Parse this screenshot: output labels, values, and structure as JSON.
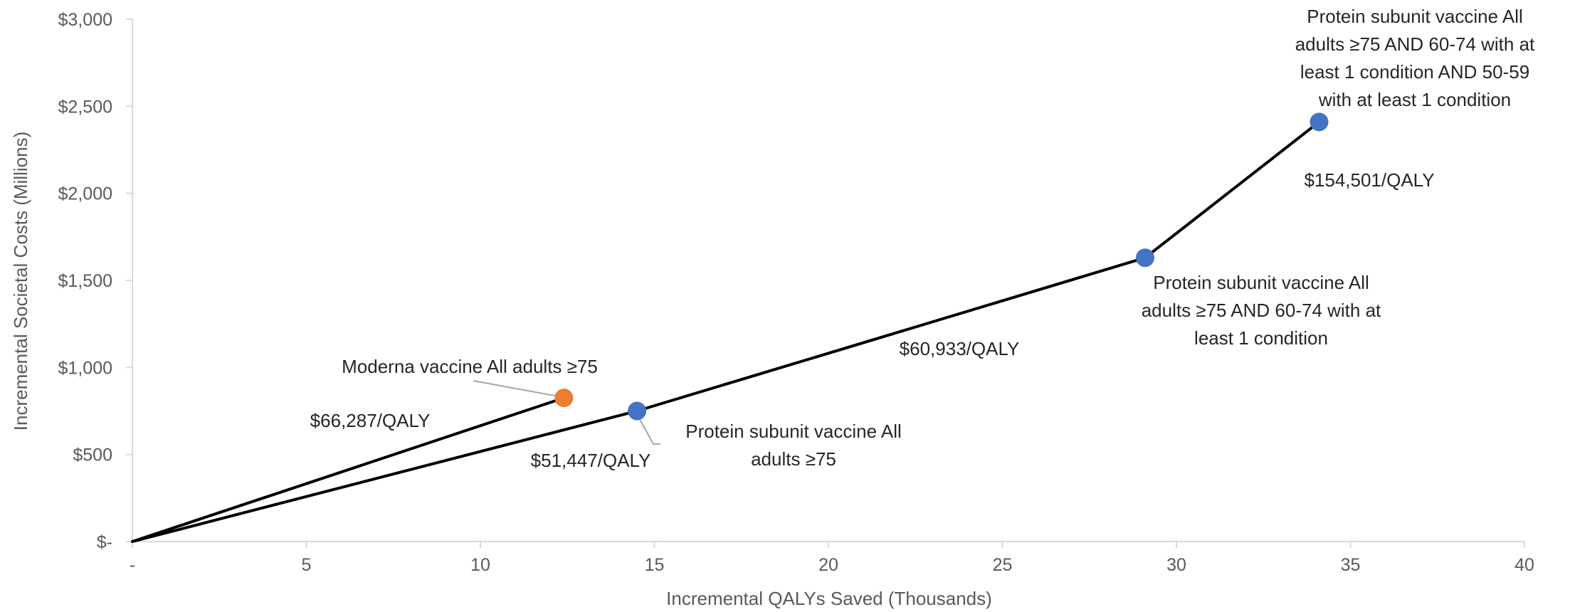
{
  "chart_data": {
    "type": "scatter",
    "title": "",
    "xlabel": "Incremental QALYs Saved (Thousands)",
    "ylabel": "Incremental Societal Costs (Millions)",
    "xlim": [
      0,
      40
    ],
    "ylim": [
      0,
      3000
    ],
    "x_ticks": [
      0,
      5,
      10,
      15,
      20,
      25,
      30,
      35,
      40
    ],
    "x_tick_labels": [
      "-",
      "5",
      "10",
      "15",
      "20",
      "25",
      "30",
      "35",
      "40"
    ],
    "y_ticks": [
      0,
      500,
      1000,
      1500,
      2000,
      2500,
      3000
    ],
    "y_tick_labels": [
      "$-",
      "$500",
      "$1,000",
      "$1,500",
      "$2,000",
      "$2,500",
      "$3,000"
    ],
    "grid": false,
    "legend": "none",
    "series": [
      {
        "color": "#4472C4",
        "points": [
          {
            "x": 14.5,
            "y": 750,
            "label": [
              "Protein subunit vaccine All",
              "adults ≥75"
            ]
          },
          {
            "x": 29.1,
            "y": 1630,
            "label": [
              "Protein subunit vaccine All",
              "adults ≥75 AND 60-74 with at",
              "least 1 condition"
            ]
          },
          {
            "x": 34.1,
            "y": 2410,
            "label": [
              "Protein subunit vaccine All",
              "adults ≥75 AND 60-74 with at",
              "least 1 condition AND 50-59",
              "with at least 1 condition"
            ]
          }
        ]
      },
      {
        "color": "#ED7D31",
        "points": [
          {
            "x": 12.4,
            "y": 825,
            "label": [
              "Moderna vaccine All adults ≥75"
            ]
          }
        ]
      }
    ],
    "segments": [
      {
        "from": [
          0,
          0
        ],
        "to": [
          12.4,
          825
        ],
        "icer": "$66,287/QALY"
      },
      {
        "from": [
          0,
          0
        ],
        "to": [
          14.5,
          750
        ],
        "icer": "$51,447/QALY"
      },
      {
        "from": [
          14.5,
          750
        ],
        "to": [
          29.1,
          1630
        ],
        "icer": "$60,933/QALY"
      },
      {
        "from": [
          29.1,
          1630
        ],
        "to": [
          34.1,
          2410
        ],
        "icer": "$154,501/QALY"
      }
    ]
  }
}
